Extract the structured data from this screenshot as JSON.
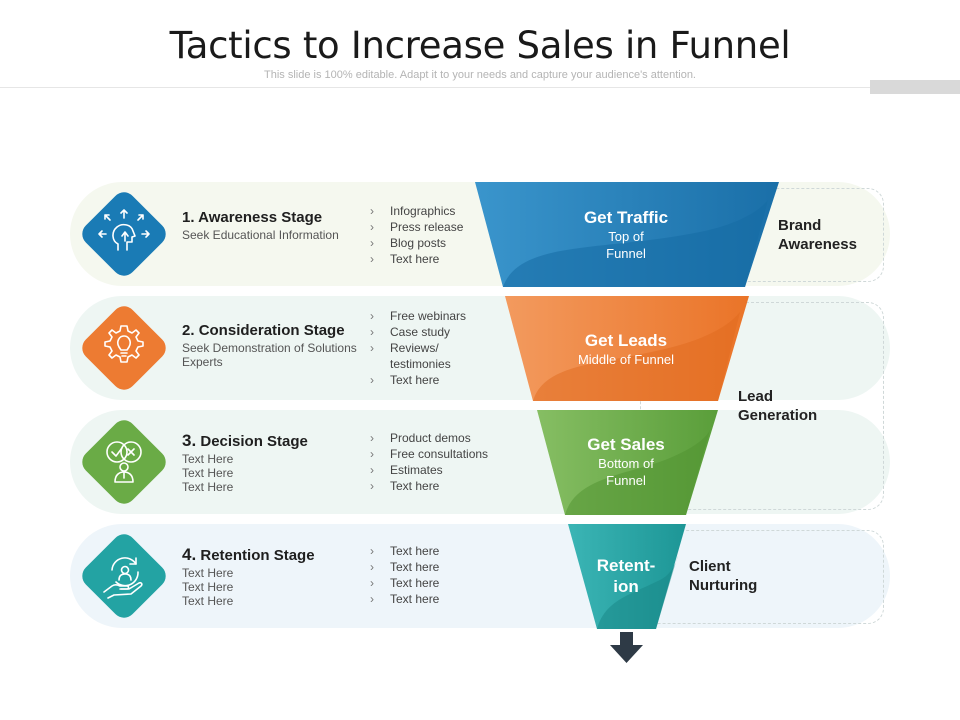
{
  "header": {
    "title": "Tactics to Increase Sales in Funnel",
    "subtitle": "This slide is 100% editable. Adapt it to your needs and capture your audience's attention."
  },
  "stages": [
    {
      "number": "1.",
      "name": "Awareness Stage",
      "desc": [
        "Seek Educational Information"
      ],
      "bullets": [
        "Infographics",
        "Press release",
        "Blog posts",
        "Text here"
      ],
      "funnel_title": [
        "Get Traffic"
      ],
      "funnel_sub": [
        "Top of",
        "Funnel"
      ],
      "color": "#1a7bb5",
      "icon": "head-arrows-icon"
    },
    {
      "number": "2.",
      "name": "Consideration Stage",
      "desc": [
        "Seek Demonstration of Solutions",
        "Experts"
      ],
      "bullets": [
        "Free webinars",
        "Case study",
        "Reviews/",
        "testimonies",
        "Text here"
      ],
      "funnel_title": [
        "Get Leads"
      ],
      "funnel_sub": [
        "Middle of Funnel"
      ],
      "color": "#ed7b32",
      "icon": "gear-bulb-icon"
    },
    {
      "number": "3.",
      "name": "Decision Stage",
      "desc": [
        "Text Here",
        "Text Here",
        "Text Here"
      ],
      "bullets": [
        "Product demos",
        "Free consultations",
        "Estimates",
        "Text here"
      ],
      "funnel_title": [
        "Get Sales"
      ],
      "funnel_sub": [
        "Bottom of",
        "Funnel"
      ],
      "color": "#6aab46",
      "icon": "decision-person-icon"
    },
    {
      "number": "4.",
      "name": "Retention Stage",
      "desc": [
        "Text Here",
        "Text Here",
        "Text Here"
      ],
      "bullets": [
        "Text here",
        "Text here",
        "Text here",
        "Text here"
      ],
      "funnel_title": [
        "Retent-",
        "ion"
      ],
      "funnel_sub": [],
      "color": "#23a3a3",
      "icon": "hand-person-cycle-icon"
    }
  ],
  "outcomes": {
    "brand": [
      "Brand",
      "Awareness"
    ],
    "lead": [
      "Lead",
      "Generation"
    ],
    "client": [
      "Client",
      "Nurturing"
    ]
  },
  "colors": {
    "row_bg_1": "#f5f8ef",
    "row_bg_2": "#eef6f3",
    "row_bg_3": "#eef6f3",
    "row_bg_4": "#eef5fa",
    "arrow": "#2e3a46"
  }
}
